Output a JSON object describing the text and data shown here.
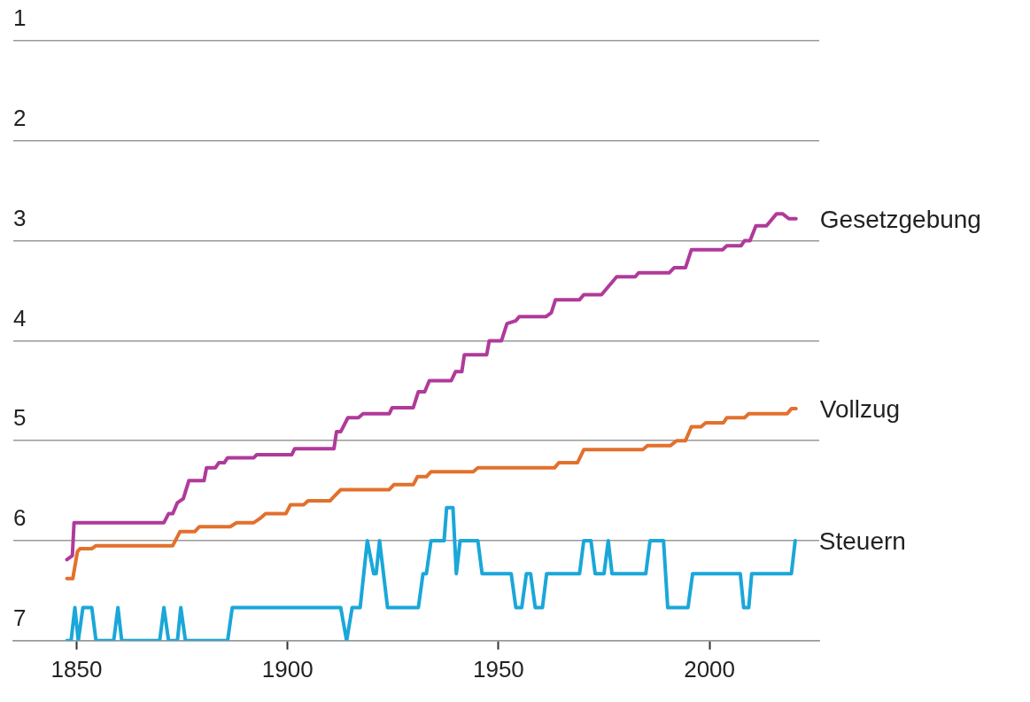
{
  "chart_data": {
    "type": "line",
    "xlim": [
      1835,
      2026
    ],
    "xticks": [
      1850,
      1900,
      1950,
      2000
    ],
    "ylim": [
      7,
      1
    ],
    "yticks": [
      1,
      2,
      3,
      4,
      5,
      6,
      7
    ],
    "grid": "y",
    "legend": false,
    "marker": "none",
    "line_style": "solid",
    "series": [
      {
        "name": "Gesetzgebung",
        "color": "#b03a9a",
        "x": [
          1847.7,
          1849,
          1849.4,
          1870.7,
          1871.8,
          1872.8,
          1873.9,
          1875.3,
          1876.6,
          1880.2,
          1880.8,
          1882.9,
          1883.7,
          1885,
          1885.8,
          1892,
          1892.7,
          1901,
          1901.7,
          1911,
          1911.6,
          1912.6,
          1914.3,
          1916.8,
          1917.9,
          1924.1,
          1924.8,
          1929.8,
          1931,
          1932.5,
          1933.6,
          1938.8,
          1939.8,
          1941.3,
          1941.9,
          1947.2,
          1947.8,
          1950.7,
          1952,
          1954.1,
          1954.9,
          1961.2,
          1962.5,
          1963.5,
          1969.2,
          1970.2,
          1974.4,
          1978,
          1982.4,
          1983.2,
          1990.5,
          1991.6,
          1994.3,
          1995.7,
          2003.1,
          2004.1,
          2007.5,
          2008.3,
          2009.6,
          2011,
          2013.5,
          2015.9,
          2017.3,
          2018.8,
          2020.5
        ],
        "values": [
          6.19,
          6.15,
          5.82,
          5.82,
          5.73,
          5.73,
          5.62,
          5.58,
          5.4,
          5.4,
          5.27,
          5.27,
          5.22,
          5.22,
          5.17,
          5.17,
          5.14,
          5.14,
          5.08,
          5.08,
          4.91,
          4.91,
          4.77,
          4.77,
          4.73,
          4.73,
          4.67,
          4.67,
          4.51,
          4.51,
          4.4,
          4.4,
          4.31,
          4.31,
          4.14,
          4.14,
          4.0,
          4.0,
          3.83,
          3.8,
          3.76,
          3.76,
          3.72,
          3.59,
          3.59,
          3.54,
          3.54,
          3.36,
          3.36,
          3.32,
          3.32,
          3.27,
          3.27,
          3.09,
          3.09,
          3.05,
          3.05,
          3.0,
          3.0,
          2.85,
          2.85,
          2.73,
          2.73,
          2.78,
          2.78
        ]
      },
      {
        "name": "Vollzug",
        "color": "#e2702c",
        "x": [
          1847.7,
          1849.1,
          1850.2,
          1850.8,
          1853.6,
          1854.6,
          1872.8,
          1874.5,
          1878,
          1879.1,
          1886.4,
          1887.9,
          1892,
          1893.4,
          1894.8,
          1899.6,
          1900.7,
          1903.8,
          1904.9,
          1910.1,
          1911.2,
          1912.6,
          1924.1,
          1925.2,
          1929.8,
          1930.8,
          1932.9,
          1934,
          1944,
          1945.1,
          1963.3,
          1964.3,
          1968.7,
          1970.2,
          1984.2,
          1985.3,
          1990.7,
          1992.2,
          1994.3,
          1995.7,
          1998,
          1999.1,
          2003.3,
          2004.1,
          2008.3,
          2009.3,
          2018.4,
          2019.4,
          2020.5
        ],
        "values": [
          6.38,
          6.38,
          6.11,
          6.08,
          6.08,
          6.05,
          6.05,
          5.91,
          5.91,
          5.86,
          5.86,
          5.82,
          5.82,
          5.78,
          5.73,
          5.73,
          5.64,
          5.64,
          5.6,
          5.6,
          5.55,
          5.49,
          5.49,
          5.44,
          5.44,
          5.36,
          5.36,
          5.31,
          5.31,
          5.27,
          5.27,
          5.22,
          5.22,
          5.09,
          5.09,
          5.05,
          5.05,
          5.0,
          5.0,
          4.86,
          4.86,
          4.82,
          4.82,
          4.77,
          4.77,
          4.73,
          4.73,
          4.68,
          4.68
        ]
      },
      {
        "name": "Steuern",
        "color": "#1aa7d9",
        "x": [
          1847.7,
          1848.7,
          1849.6,
          1850.4,
          1851.5,
          1853.6,
          1854.6,
          1858.8,
          1859.8,
          1860.7,
          1869.7,
          1870.7,
          1871.8,
          1873.9,
          1874.7,
          1875.8,
          1885.8,
          1886.9,
          1912.6,
          1914,
          1915.3,
          1917.2,
          1918.9,
          1920.4,
          1921,
          1921.8,
          1923.7,
          1931,
          1932.1,
          1932.9,
          1934,
          1937.1,
          1937.7,
          1939.2,
          1940,
          1940.9,
          1945.1,
          1946.1,
          1953,
          1954.1,
          1955.5,
          1956.6,
          1957.6,
          1958.7,
          1960.4,
          1961.4,
          1969.2,
          1970.2,
          1971.9,
          1972.9,
          1975,
          1976,
          1976.9,
          1984.9,
          1985.9,
          1989.1,
          1990.1,
          1994.9,
          1996,
          2007.3,
          2008.1,
          2009.3,
          2010,
          2019.4,
          2020.3
        ],
        "values": [
          7,
          7,
          6.67,
          7,
          6.67,
          6.67,
          7,
          7,
          6.67,
          7,
          7,
          6.67,
          7,
          7,
          6.67,
          7,
          7,
          6.67,
          6.67,
          7,
          6.67,
          6.67,
          6,
          6.33,
          6.33,
          6,
          6.67,
          6.67,
          6.33,
          6.33,
          6,
          6,
          5.67,
          5.67,
          6.33,
          6,
          6,
          6.33,
          6.33,
          6.67,
          6.67,
          6.33,
          6.33,
          6.67,
          6.67,
          6.33,
          6.33,
          6,
          6,
          6.33,
          6.33,
          6,
          6.33,
          6.33,
          6,
          6,
          6.67,
          6.67,
          6.33,
          6.33,
          6.67,
          6.67,
          6.33,
          6.33,
          6
        ]
      }
    ]
  }
}
